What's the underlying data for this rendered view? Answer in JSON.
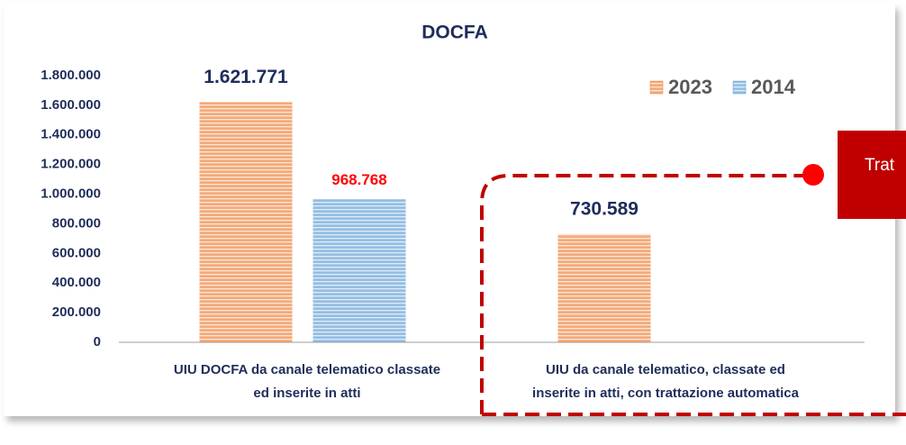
{
  "chart_data": {
    "type": "bar",
    "title": "DOCFA",
    "categories": [
      [
        "UIU DOCFA da canale telematico classate",
        "ed inserite in atti"
      ],
      [
        "UIU  da canale telematico, classate ed",
        "inserite in atti, con trattazione automatica"
      ]
    ],
    "series": [
      {
        "name": "2023",
        "color": "#ed7d31",
        "label_color": "#1f2d5a",
        "values": [
          1621771,
          730589
        ],
        "value_labels": [
          "1.621.771",
          "730.589"
        ]
      },
      {
        "name": "2014",
        "color": "#5b9bd5",
        "label_color": "#ff0000",
        "values": [
          968768,
          null
        ],
        "value_labels": [
          "968.768",
          null
        ]
      }
    ],
    "ylim": [
      0,
      1800000
    ],
    "yticks": [
      0,
      {
        "value": 200000,
        "label": "200.000"
      },
      {
        "value": 400000,
        "label": "400.000"
      },
      {
        "value": 600000,
        "label": "600.000"
      },
      {
        "value": 800000,
        "label": "800.000"
      },
      {
        "value": 1000000,
        "label": "1.000.000"
      },
      {
        "value": 1200000,
        "label": "1.200.000"
      },
      {
        "value": 1400000,
        "label": "1.400.000"
      },
      {
        "value": 1600000,
        "label": "1.600.000"
      },
      {
        "value": 1800000,
        "label": "1.800.000"
      }
    ],
    "grid": false,
    "legend": "top-right",
    "annotation": "Trat"
  }
}
